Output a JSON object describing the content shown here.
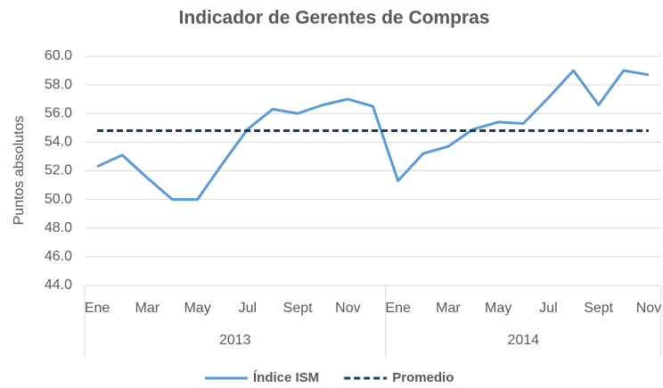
{
  "chart_data": {
    "type": "line",
    "title": "Indicador de Gerentes de Compras",
    "y_label": "Puntos absolutos",
    "category_groups": [
      {
        "label": "2013",
        "categories": [
          "Ene",
          null,
          "Mar",
          null,
          "May",
          null,
          "Jul",
          null,
          "Sept",
          null,
          "Nov",
          null
        ]
      },
      {
        "label": "2014",
        "categories": [
          "Ene",
          null,
          "Mar",
          null,
          "May",
          null,
          "Jul",
          null,
          "Sept",
          null,
          "Nov"
        ]
      }
    ],
    "series": [
      {
        "name": "Índice ISM",
        "color": "#5b9bd5",
        "dashed": false,
        "values": [
          52.3,
          53.1,
          51.5,
          50.0,
          50.0,
          52.5,
          54.9,
          56.3,
          56.0,
          56.6,
          57.0,
          56.5,
          51.3,
          53.2,
          53.7,
          54.9,
          55.4,
          55.3,
          57.1,
          59.0,
          56.6,
          59.0,
          58.7
        ]
      },
      {
        "name": "Promedio",
        "color": "#1f3864",
        "dashed": true,
        "values": [
          54.8,
          54.8,
          54.8,
          54.8,
          54.8,
          54.8,
          54.8,
          54.8,
          54.8,
          54.8,
          54.8,
          54.8,
          54.8,
          54.8,
          54.8,
          54.8,
          54.8,
          54.8,
          54.8,
          54.8,
          54.8,
          54.8,
          54.8
        ]
      }
    ],
    "ylim": [
      44,
      60
    ],
    "yticks": [
      {
        "value": 44,
        "label": "44.0"
      },
      {
        "value": 46,
        "label": "46.0"
      },
      {
        "value": 48,
        "label": "48.0"
      },
      {
        "value": 50,
        "label": "50.0"
      },
      {
        "value": 52,
        "label": "52.0"
      },
      {
        "value": 54,
        "label": "54.0"
      },
      {
        "value": 56,
        "label": "56.0"
      },
      {
        "value": 58,
        "label": "58.0"
      },
      {
        "value": 60,
        "label": "60.0"
      }
    ],
    "grid": true,
    "legend": "bottom"
  }
}
